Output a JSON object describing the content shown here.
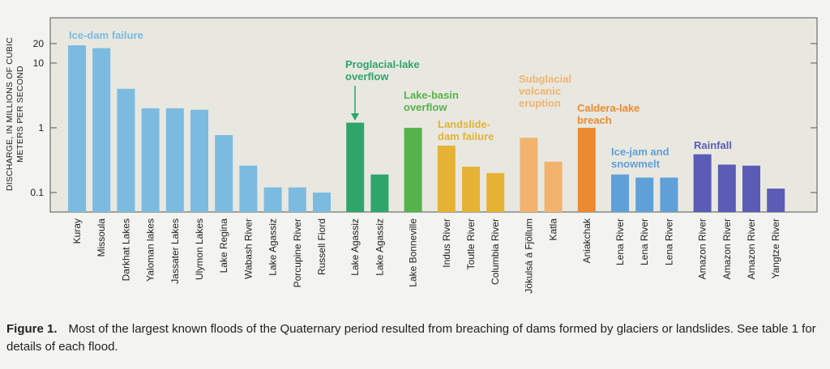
{
  "chart_data": {
    "type": "bar",
    "ylabel": "DISCHARGE, IN MILLIONS OF CUBIC METERS PER SECOND",
    "log_y": true,
    "ylim": [
      0.05,
      50
    ],
    "yticks": [
      0.1,
      1,
      10,
      20
    ],
    "grid": false,
    "series": [
      {
        "name": "Ice-dam failure",
        "color": "#7cbbe0",
        "categories": [
          "Kuray",
          "Missoula",
          "Darkhat Lakes",
          "Yaloman lakes",
          "Jassater Lakes",
          "Ulymon Lakes",
          "Lake Regina",
          "Wabash River",
          "Lake Agassiz",
          "Porcupine River",
          "Russell Fiord"
        ],
        "values": [
          18.8,
          17,
          4,
          2,
          2,
          1.9,
          0.77,
          0.26,
          0.12,
          0.12,
          0.1
        ]
      },
      {
        "name": "Proglacial-lake overflow",
        "color": "#2fa56c",
        "categories": [
          "Lake Agassiz",
          "Lake Agassiz"
        ],
        "values": [
          1.2,
          0.19
        ]
      },
      {
        "name": "Lake-basin overflow",
        "color": "#56b24a",
        "categories": [
          "Lake Bonneville"
        ],
        "values": [
          1.0
        ]
      },
      {
        "name": "Landslide-dam failure",
        "color": "#e5b235",
        "categories": [
          "Indus River",
          "Toutle River",
          "Columbia River"
        ],
        "values": [
          0.53,
          0.25,
          0.2
        ]
      },
      {
        "name": "Subglacial volcanic eruption",
        "color": "#f2b36e",
        "categories": [
          "Jökulsá á Fjöllum",
          "Katla"
        ],
        "values": [
          0.7,
          0.3
        ]
      },
      {
        "name": "Caldera-lake breach",
        "color": "#ec8a32",
        "categories": [
          "Aniakchak"
        ],
        "values": [
          1.0
        ]
      },
      {
        "name": "Ice-jam and snowmelt",
        "color": "#5fa0d8",
        "categories": [
          "Lena River",
          "Lena River",
          "Lena River"
        ],
        "values": [
          0.19,
          0.17,
          0.17
        ]
      },
      {
        "name": "Rainfall",
        "color": "#5a5cb6",
        "categories": [
          "Amazon River",
          "Amazon River",
          "Amazon River",
          "Yangtze River"
        ],
        "values": [
          0.39,
          0.27,
          0.26,
          0.115
        ]
      }
    ]
  },
  "caption": {
    "label": "Figure 1.",
    "text": "Most of the largest known floods of the Quaternary period resulted from breaching of dams formed by glaciers or landslides. See table 1 for details of each flood."
  }
}
